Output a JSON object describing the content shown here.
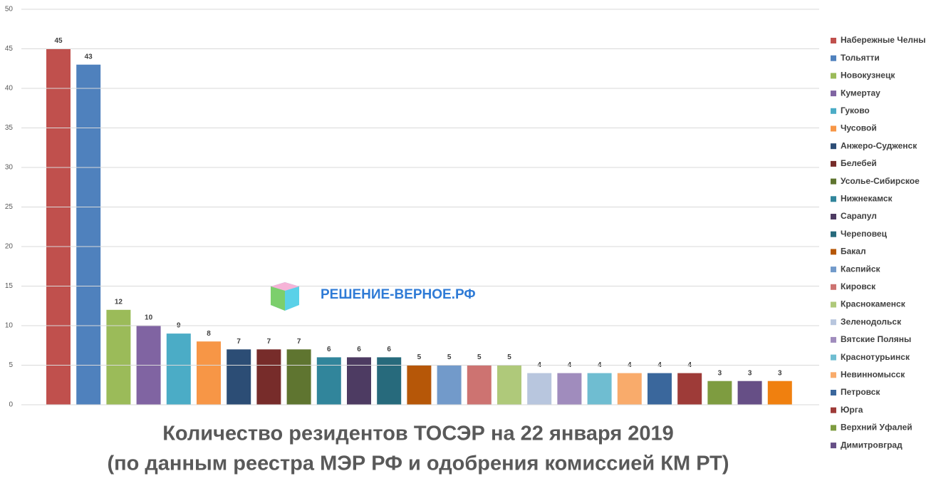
{
  "chart_data": {
    "type": "bar",
    "title": [
      "Количество резидентов ТОСЭР на 22 января 2019",
      "(по данным реестра МЭР РФ и одобрения комиссией КМ РТ)"
    ],
    "watermark": "РЕШЕНИЕ-ВЕРНОЕ.РФ",
    "categories": [
      "Набережные Челны",
      "Тольятти",
      "Новокузнецк",
      "Кумертау",
      "Гуково",
      "Чусовой",
      "Анжеро-Судженск",
      "Белебей",
      "Усолье-Сибирское",
      "Нижнекамск",
      "Сарапул",
      "Череповец",
      "Бакал",
      "Каспийск",
      "Кировск",
      "Краснокаменск",
      "Зеленодольск",
      "Вятские Поляны",
      "Краснотурьинск",
      "Невинномысск",
      "Петровск",
      "Юрга",
      "Верхний Уфалей",
      "Димитровград",
      null
    ],
    "values": [
      45,
      43,
      12,
      10,
      9,
      8,
      7,
      7,
      7,
      6,
      6,
      6,
      5,
      5,
      5,
      5,
      4,
      4,
      4,
      4,
      4,
      4,
      3,
      3,
      3
    ],
    "colors": [
      "#c0504d",
      "#4f81bd",
      "#9bbb59",
      "#8064a2",
      "#4bacc6",
      "#f79646",
      "#2c4d75",
      "#772c2a",
      "#5f7530",
      "#31859b",
      "#4d3b62",
      "#276a7c",
      "#b65708",
      "#729aca",
      "#cd7371",
      "#afc97a",
      "#b8c6de",
      "#a08cbd",
      "#6fbdd1",
      "#f9ab6b",
      "#3a679c",
      "#9e3b38",
      "#7e9c40",
      "#664f86",
      "#f0800f"
    ],
    "ylim": [
      0,
      50
    ],
    "yticks": [
      0,
      5,
      10,
      15,
      20,
      25,
      30,
      35,
      40,
      45,
      50
    ],
    "grid": true,
    "legend": "right"
  }
}
